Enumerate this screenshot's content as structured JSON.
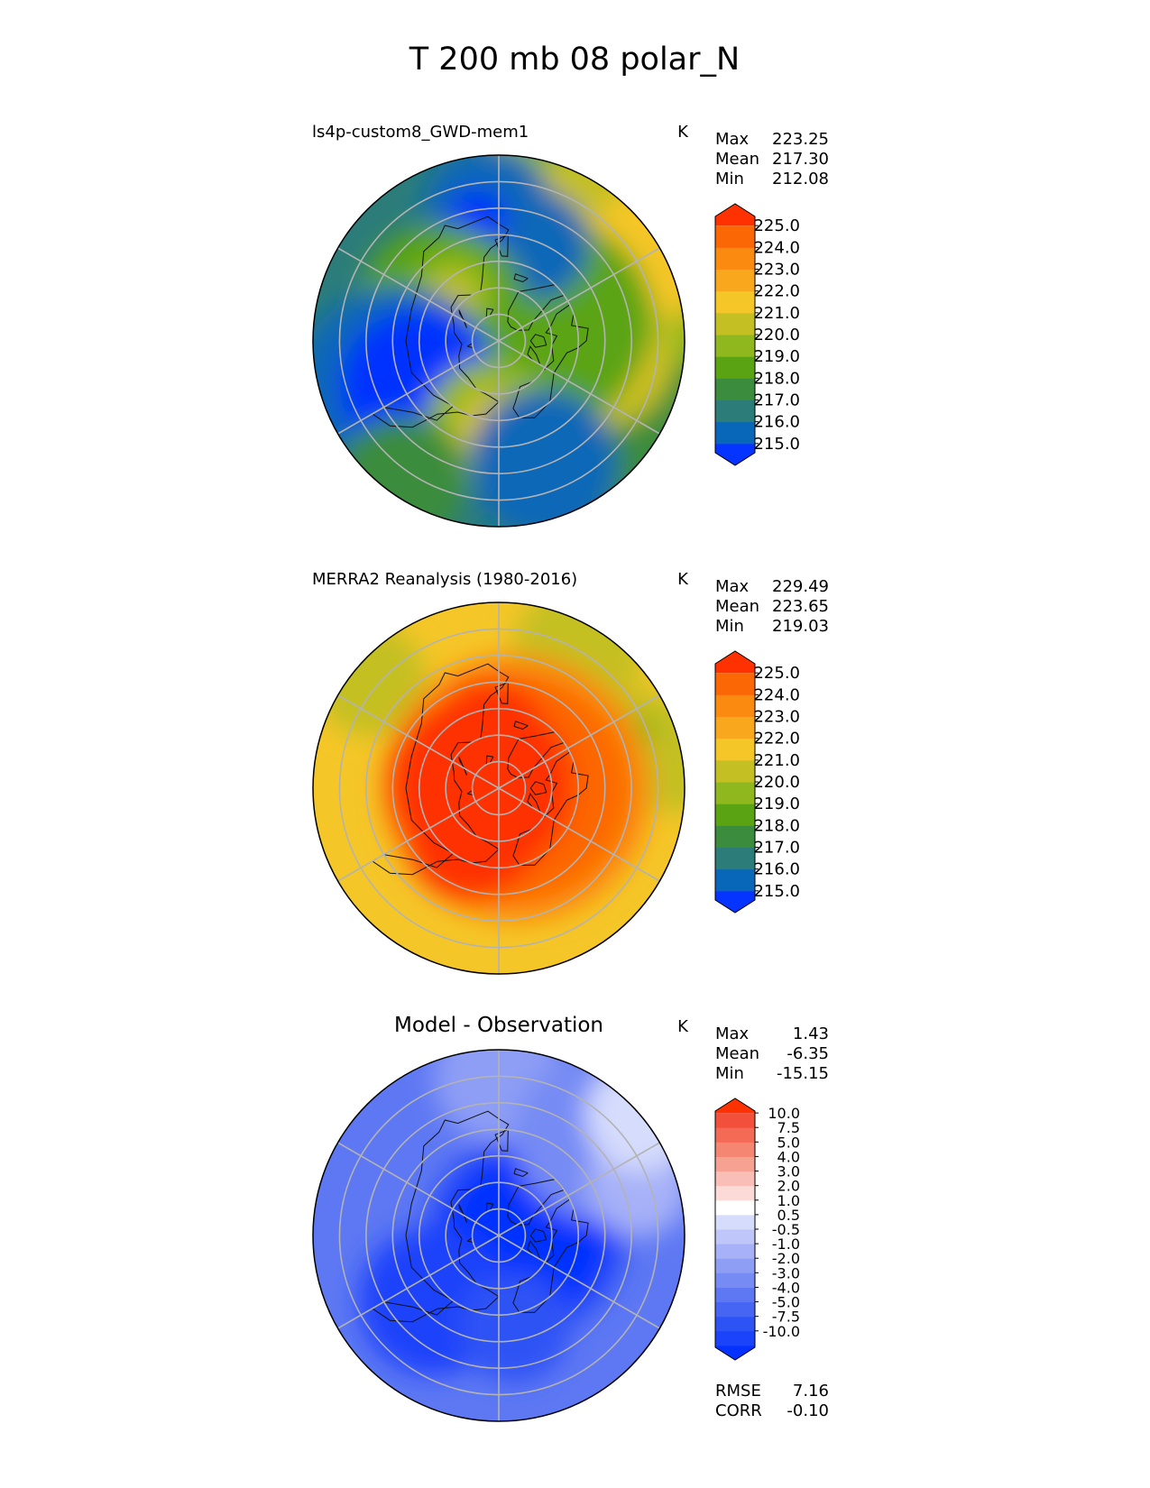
{
  "figure_title": "T 200 mb 08 polar_N",
  "chart_data": [
    {
      "type": "contour-map",
      "projection": "north-polar-stereographic",
      "title": "ls4p-custom8_GWD-mem1",
      "units": "K",
      "stats": [
        {
          "label": "Max",
          "value": "223.25"
        },
        {
          "label": "Mean",
          "value": "217.30"
        },
        {
          "label": "Min",
          "value": "212.08"
        }
      ],
      "colorbar": {
        "ticks": [
          "225.0",
          "224.0",
          "223.0",
          "222.0",
          "221.0",
          "220.0",
          "219.0",
          "218.0",
          "217.0",
          "216.0",
          "215.0"
        ],
        "colors": [
          "#0533ff",
          "#0867b8",
          "#2c7d7a",
          "#3b8c3d",
          "#5aa414",
          "#8fb81e",
          "#c4c024",
          "#f5c628",
          "#f9a81e",
          "#fb8a10",
          "#fc6706",
          "#fe3100"
        ]
      },
      "field": {
        "base": "#2c7d7a",
        "blobs": [
          {
            "ang": 0,
            "r": 0.62,
            "s": 0.9,
            "color": "#3b8c3d"
          },
          {
            "ang": 45,
            "r": 0.75,
            "s": 0.8,
            "color": "#8fb81e"
          },
          {
            "ang": 40,
            "r": 0.8,
            "s": 0.55,
            "color": "#c4c024"
          },
          {
            "ang": 30,
            "r": 0.95,
            "s": 0.35,
            "color": "#f5c628"
          },
          {
            "ang": -8,
            "r": 0.55,
            "s": 0.4,
            "color": "#c4c024"
          },
          {
            "ang": -5,
            "r": 0.55,
            "s": 0.3,
            "color": "#f5c628"
          },
          {
            "ang": -8,
            "r": 0.5,
            "s": 0.2,
            "color": "#f9a81e"
          },
          {
            "ang": 20,
            "r": 0.3,
            "s": 0.55,
            "color": "#5aa414"
          },
          {
            "ang": 70,
            "r": 0.55,
            "s": 0.3,
            "color": "#0867b8"
          },
          {
            "ang": 95,
            "r": 0.7,
            "s": 0.35,
            "color": "#0867b8"
          },
          {
            "ang": 100,
            "r": 0.66,
            "s": 0.16,
            "color": "#0533ff"
          },
          {
            "ang": 150,
            "r": 0.35,
            "s": 0.45,
            "color": "#5aa414"
          },
          {
            "ang": 135,
            "r": 0.35,
            "s": 0.22,
            "color": "#8fb81e"
          },
          {
            "ang": 135,
            "r": 0.35,
            "s": 0.12,
            "color": "#c4c024"
          },
          {
            "ang": 205,
            "r": 0.6,
            "s": 0.55,
            "color": "#0867b8"
          },
          {
            "ang": 210,
            "r": 0.5,
            "s": 0.42,
            "color": "#0533ff"
          },
          {
            "ang": 265,
            "r": 0.45,
            "s": 0.35,
            "color": "#8fb81e"
          },
          {
            "ang": 265,
            "r": 0.45,
            "s": 0.2,
            "color": "#c4c024"
          },
          {
            "ang": 275,
            "r": 0.55,
            "s": 0.22,
            "color": "#f5c628"
          },
          {
            "ang": 290,
            "r": 0.7,
            "s": 0.4,
            "color": "#0867b8"
          },
          {
            "ang": 235,
            "r": 0.92,
            "s": 0.35,
            "color": "#3b8c3d"
          }
        ]
      }
    },
    {
      "type": "contour-map",
      "projection": "north-polar-stereographic",
      "title": "MERRA2 Reanalysis (1980-2016)",
      "units": "K",
      "stats": [
        {
          "label": "Max",
          "value": "229.49"
        },
        {
          "label": "Mean",
          "value": "223.65"
        },
        {
          "label": "Min",
          "value": "219.03"
        }
      ],
      "colorbar": {
        "ticks": [
          "225.0",
          "224.0",
          "223.0",
          "222.0",
          "221.0",
          "220.0",
          "219.0",
          "218.0",
          "217.0",
          "216.0",
          "215.0"
        ],
        "colors": [
          "#0533ff",
          "#0867b8",
          "#2c7d7a",
          "#3b8c3d",
          "#5aa414",
          "#8fb81e",
          "#c4c024",
          "#f5c628",
          "#f9a81e",
          "#fb8a10",
          "#fc6706",
          "#fe3100"
        ]
      },
      "field": {
        "base": "#f5c628",
        "blobs": [
          {
            "ang": 60,
            "r": 0.85,
            "s": 0.35,
            "color": "#c4c024"
          },
          {
            "ang": 140,
            "r": 0.9,
            "s": 0.3,
            "color": "#c4c024"
          },
          {
            "ang": 10,
            "r": 0.95,
            "s": 0.3,
            "color": "#c4c024"
          },
          {
            "ang": 22,
            "r": 0.82,
            "s": 0.22,
            "color": "#c4c024"
          },
          {
            "ang": 22,
            "r": 0.82,
            "s": 0.1,
            "color": "#8fb81e"
          },
          {
            "ang": 0,
            "r": 0.1,
            "s": 0.72,
            "color": "#fb8a10"
          },
          {
            "ang": 0,
            "r": 0.1,
            "s": 0.6,
            "color": "#fc6706"
          },
          {
            "ang": 170,
            "r": 0.1,
            "s": 0.5,
            "color": "#fe3100"
          },
          {
            "ang": 240,
            "r": 0.3,
            "s": 0.35,
            "color": "#fe3100"
          },
          {
            "ang": 100,
            "r": 0.3,
            "s": 0.3,
            "color": "#fe3100"
          }
        ]
      }
    },
    {
      "type": "contour-map",
      "projection": "north-polar-stereographic",
      "title": "Model - Observation",
      "units": "K",
      "stats": [
        {
          "label": "Max",
          "value": "1.43"
        },
        {
          "label": "Mean",
          "value": "-6.35"
        },
        {
          "label": "Min",
          "value": "-15.15"
        }
      ],
      "footer_stats": [
        {
          "label": "RMSE",
          "value": "7.16"
        },
        {
          "label": "CORR",
          "value": "-0.10"
        }
      ],
      "colorbar": {
        "ticks": [
          "10.0",
          "7.5",
          "5.0",
          "4.0",
          "3.0",
          "2.0",
          "1.0",
          "0.5",
          "-0.5",
          "-1.0",
          "-2.0",
          "-3.0",
          "-4.0",
          "-5.0",
          "-7.5",
          "-10.0"
        ],
        "colors": [
          "#0532ff",
          "#1a43fa",
          "#2e53f5",
          "#4665f3",
          "#5e78f3",
          "#768bf4",
          "#8e9ef5",
          "#a6b1f8",
          "#bec6fa",
          "#d6dcfc",
          "#ffffff",
          "#fcdad6",
          "#f9beb6",
          "#f6a293",
          "#f48672",
          "#f36a55",
          "#f3503c",
          "#fe3100"
        ]
      },
      "field": {
        "base": "#5e78f3",
        "blobs": [
          {
            "ang": 0,
            "r": 0.15,
            "s": 0.55,
            "color": "#2e53f5"
          },
          {
            "ang": 0,
            "r": 0.15,
            "s": 0.45,
            "color": "#0532ff"
          },
          {
            "ang": 225,
            "r": 0.5,
            "s": 0.4,
            "color": "#1a43fa"
          },
          {
            "ang": 280,
            "r": 0.5,
            "s": 0.3,
            "color": "#2e53f5"
          },
          {
            "ang": 90,
            "r": 0.85,
            "s": 0.35,
            "color": "#8e9ef5"
          },
          {
            "ang": 45,
            "r": 0.75,
            "s": 0.45,
            "color": "#768bf4"
          },
          {
            "ang": 20,
            "r": 0.8,
            "s": 0.28,
            "color": "#a6b1f8"
          },
          {
            "ang": 40,
            "r": 1.0,
            "s": 0.3,
            "color": "#d6dcfc"
          }
        ]
      }
    }
  ]
}
